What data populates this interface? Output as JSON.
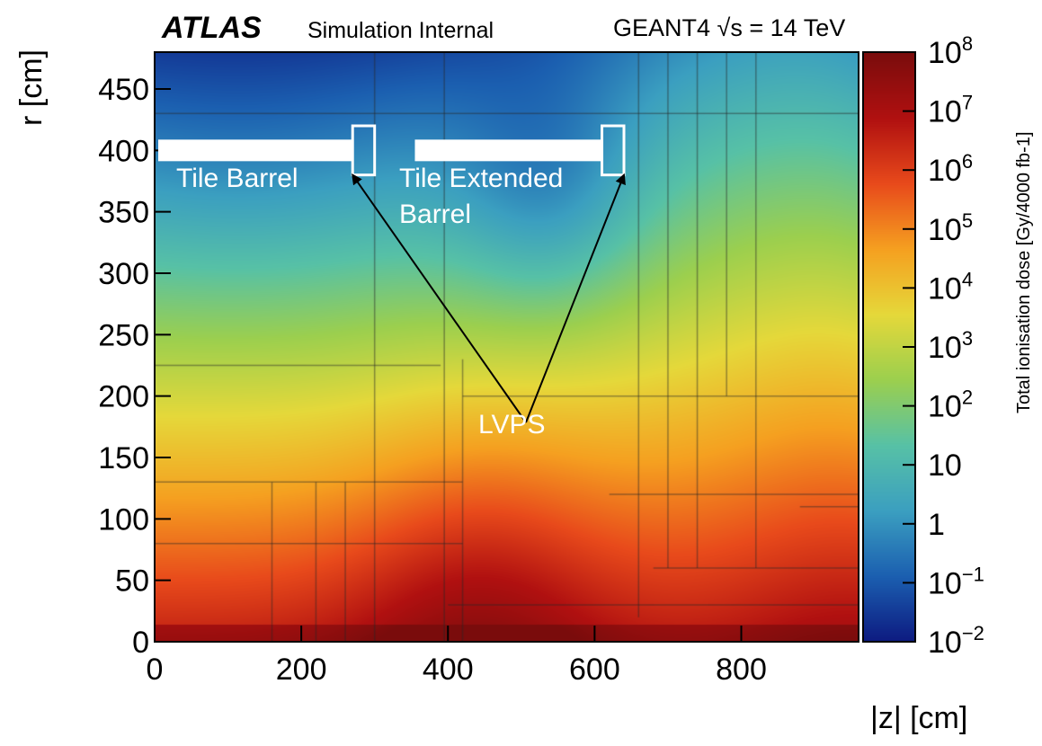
{
  "header": {
    "experiment": "ATLAS",
    "subtitle": "Simulation Internal",
    "generator": "GEANT4",
    "energy_label": "= 14 TeV"
  },
  "annotations": {
    "tile_barrel": "Tile Barrel",
    "tile_extended_1": "Tile Extended",
    "tile_extended_2": "Barrel",
    "lvps": "LVPS"
  },
  "colors": {
    "palette": [
      "#0d1a80",
      "#1b5fb0",
      "#3b9fc0",
      "#57c1a6",
      "#9ccf4e",
      "#e5d83a",
      "#f5a020",
      "#e84a1b",
      "#b01010",
      "#7a0c0c"
    ],
    "overlay_white": "#ffffff",
    "arrow": "#000000"
  },
  "chart_data": {
    "type": "heatmap",
    "title": "",
    "xlabel": "|z| [cm]",
    "ylabel": "r [cm]",
    "zlabel": "Total ionisation dose [Gy/4000 fb-1]",
    "xlim": [
      0,
      960
    ],
    "ylim": [
      0,
      480
    ],
    "x_ticks": [
      0,
      200,
      400,
      600,
      800
    ],
    "y_ticks": [
      0,
      50,
      100,
      150,
      200,
      250,
      300,
      350,
      400,
      450
    ],
    "zscale": "log",
    "zlim": [
      0.01,
      100000000
    ],
    "z_ticks": [
      {
        "base": "10",
        "exp": "8"
      },
      {
        "base": "10",
        "exp": "7"
      },
      {
        "base": "10",
        "exp": "6"
      },
      {
        "base": "10",
        "exp": "5"
      },
      {
        "base": "10",
        "exp": "4"
      },
      {
        "base": "10",
        "exp": "3"
      },
      {
        "base": "10",
        "exp": "2"
      },
      {
        "base": "10",
        "exp": ""
      },
      {
        "base": "1",
        "exp": ""
      },
      {
        "base": "10",
        "exp": "−1"
      },
      {
        "base": "10",
        "exp": "−2"
      }
    ],
    "dose_map_description_points": [
      {
        "z": 0,
        "r": 0,
        "dose_log10": 6.5
      },
      {
        "z": 450,
        "r": 10,
        "dose_log10": 7.0
      },
      {
        "z": 960,
        "r": 10,
        "dose_log10": 6.0
      },
      {
        "z": 0,
        "r": 100,
        "dose_log10": 5.5
      },
      {
        "z": 0,
        "r": 200,
        "dose_log10": 3.0
      },
      {
        "z": 0,
        "r": 300,
        "dose_log10": 2.0
      },
      {
        "z": 200,
        "r": 380,
        "dose_log10": 0.5
      },
      {
        "z": 550,
        "r": 350,
        "dose_log10": 0.0
      },
      {
        "z": 800,
        "r": 300,
        "dose_log10": 2.5
      },
      {
        "z": 900,
        "r": 450,
        "dose_log10": 2.0
      }
    ],
    "markers": [
      {
        "label": "Tile Barrel",
        "z_range": [
          0,
          270
        ],
        "r": 400
      },
      {
        "label": "Tile Extended Barrel",
        "z_range": [
          350,
          610
        ],
        "r": 400
      },
      {
        "label": "LVPS",
        "boxes": [
          {
            "z_range": [
              270,
              300
            ],
            "r_range": [
              380,
              420
            ]
          },
          {
            "z_range": [
              610,
              640
            ],
            "r_range": [
              380,
              420
            ]
          }
        ]
      }
    ]
  }
}
